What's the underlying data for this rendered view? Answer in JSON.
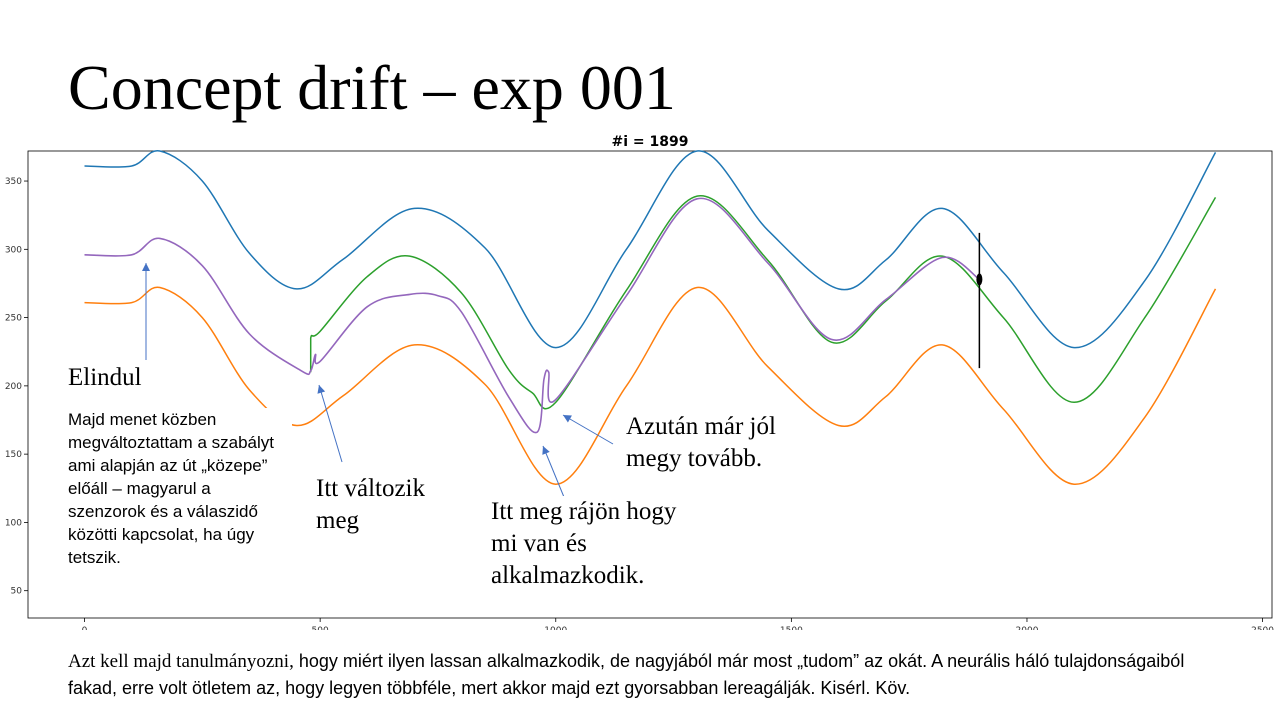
{
  "slide": {
    "title": "Concept drift – exp 001",
    "annotations": {
      "start": "Elindul",
      "note": "Majd menet közben megváltoztattam a szabályt ami alapján az út „közepe” előáll – magyarul a szenzorok és a válaszidő közötti kapcsolat, ha úgy tetszik.",
      "changes_line1": "Itt változik",
      "changes_line2": "meg",
      "realizes_line1": "Itt meg rájön hogy",
      "realizes_line2": "mi van és",
      "realizes_line3": "alkalmazkodik.",
      "good_line1": "Azután már jól",
      "good_line2": "megy tovább."
    },
    "bottom": {
      "part1": "Azt kell majd tanulmányozni,",
      "part2": " hogy miért ilyen lassan alkalmazkodik, de nagyjából már most „tudom” az okát. A neurális háló tulajdonságaiból fakad, erre volt ötletem az, hogy legyen többféle, mert akkor majd ezt gyorsabban lereagálják. Kisérl. Köv."
    }
  },
  "chart_data": {
    "type": "line",
    "title": "#i = 1899",
    "xlabel": "",
    "ylabel": "",
    "xlim": [
      -120,
      2520
    ],
    "ylim": [
      30,
      372
    ],
    "x_ticks": [
      0,
      500,
      1000,
      1500,
      2000,
      2500
    ],
    "y_ticks": [
      50,
      100,
      150,
      200,
      250,
      300,
      350
    ],
    "current_index": 1899,
    "marker": {
      "x": 1899,
      "y": 278,
      "vline_from": 213,
      "vline_to": 312
    },
    "colors": {
      "upper": "#1f77b4",
      "lower": "#ff7f0e",
      "center": "#2ca02c",
      "prediction": "#9467bd",
      "marker": "#000000"
    },
    "series": [
      {
        "key": "upper",
        "x": [
          0,
          100,
          160,
          250,
          350,
          450,
          550,
          700,
          850,
          1000,
          1150,
          1300,
          1450,
          1600,
          1700,
          1820,
          1950,
          2100,
          2250,
          2400
        ],
        "y": [
          361,
          361,
          372,
          350,
          297,
          271,
          293,
          330,
          301,
          228,
          300,
          372,
          314,
          271,
          292,
          330,
          283,
          228,
          277,
          371
        ]
      },
      {
        "key": "lower",
        "x": [
          0,
          100,
          160,
          250,
          350,
          450,
          550,
          700,
          850,
          1000,
          1150,
          1300,
          1450,
          1600,
          1700,
          1820,
          1950,
          2100,
          2250,
          2400
        ],
        "y": [
          261,
          261,
          272,
          250,
          197,
          171,
          193,
          230,
          201,
          128,
          200,
          272,
          214,
          171,
          192,
          230,
          183,
          128,
          177,
          271
        ]
      },
      {
        "key": "center",
        "x": [
          480,
          480,
          500,
          600,
          690,
          800,
          900,
          950,
          1000,
          1150,
          1300,
          1450,
          1585,
          1700,
          1820,
          1950,
          2100,
          2250,
          2400
        ],
        "y": [
          210,
          235,
          240,
          280,
          295,
          268,
          212,
          195,
          188,
          270,
          339,
          292,
          232,
          262,
          295,
          250,
          188,
          250,
          338
        ]
      },
      {
        "key": "prediction",
        "x": [
          0,
          100,
          160,
          250,
          350,
          460,
          480,
          490,
          500,
          600,
          690,
          750,
          800,
          900,
          960,
          975,
          985,
          1000,
          1150,
          1300,
          1450,
          1585,
          1700,
          1820,
          1899
        ],
        "y": [
          296,
          296,
          308,
          288,
          238,
          211,
          211,
          223,
          218,
          258,
          267,
          266,
          254,
          192,
          166,
          205,
          210,
          190,
          266,
          337,
          290,
          234,
          263,
          294,
          278
        ]
      }
    ]
  }
}
